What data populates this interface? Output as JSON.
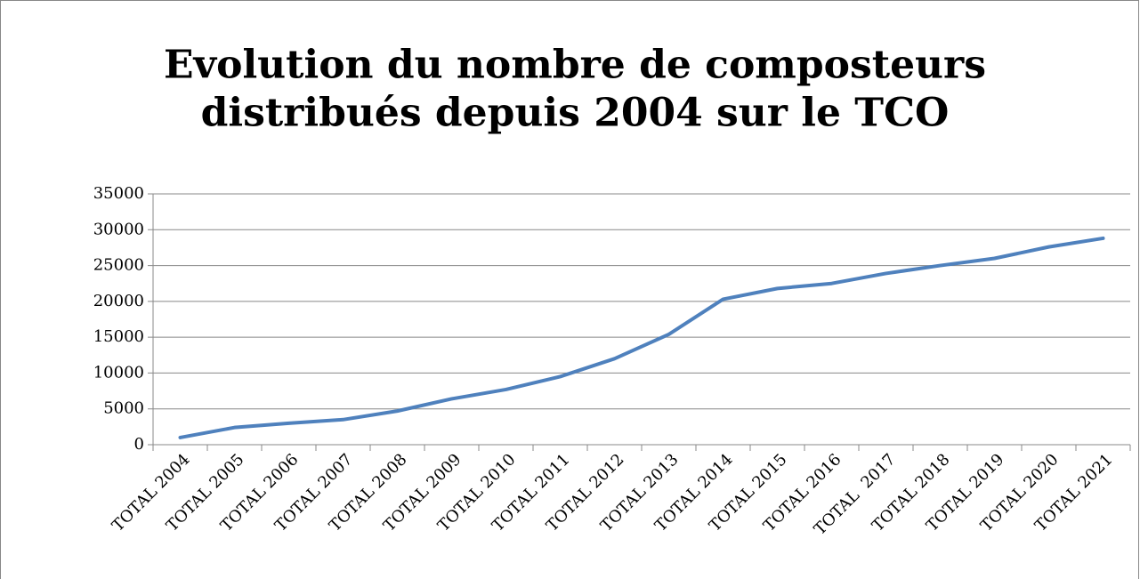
{
  "chart_data": {
    "type": "line",
    "title": [
      "Evolution du nombre de composteurs",
      "distribués depuis 2004 sur le TCO"
    ],
    "categories": [
      "TOTAL 2004",
      "TOTAL 2005",
      "TOTAL 2006",
      "TOTAL 2007",
      "TOTAL 2008",
      "TOTAL 2009",
      "TOTAL 2010",
      "TOTAL 2011",
      "TOTAL 2012",
      "TOTAL 2013",
      "TOTAL 2014",
      "TOTAL 2015",
      "TOTAL 2016",
      "TOTAL  2017",
      "TOTAL 2018",
      "TOTAL 2019",
      "TOTAL 2020",
      "TOTAL 2021"
    ],
    "values": [
      1000,
      2400,
      3000,
      3500,
      4700,
      6400,
      7700,
      9500,
      12000,
      15400,
      20300,
      21800,
      22500,
      23900,
      25000,
      26000,
      27600,
      28800
    ],
    "color": "#4f81bd",
    "ylim": [
      0,
      35000
    ],
    "yticks": [
      0,
      5000,
      10000,
      15000,
      20000,
      25000,
      30000,
      35000
    ],
    "grid": true
  }
}
